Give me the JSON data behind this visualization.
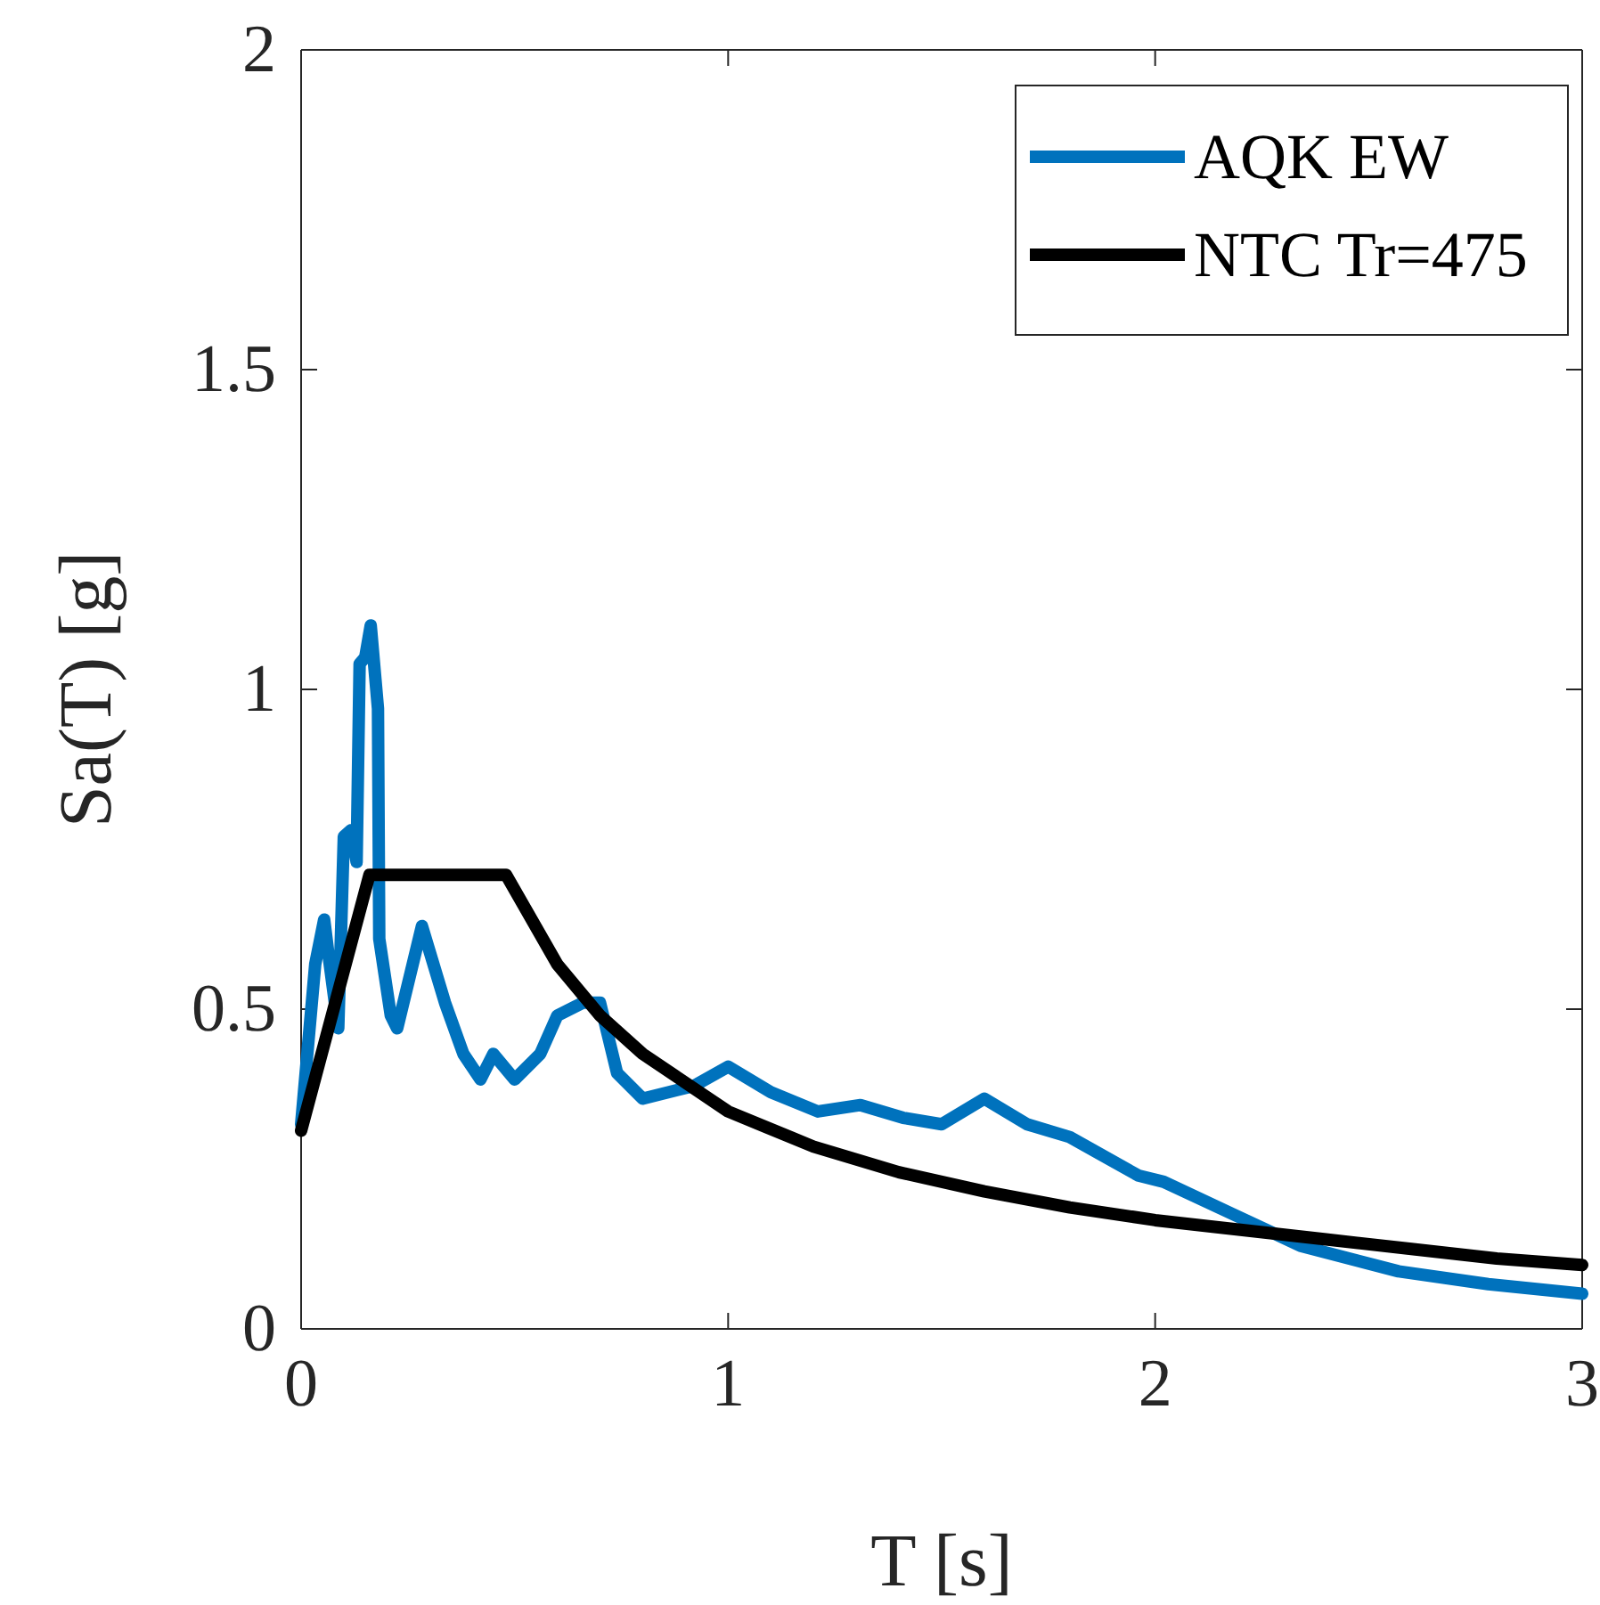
{
  "chart_data": {
    "type": "line",
    "xlabel": "T [s]",
    "ylabel": "Sa(T) [g]",
    "xlim": [
      0,
      3
    ],
    "ylim": [
      0,
      2
    ],
    "xticks": [
      0,
      1,
      2,
      3
    ],
    "yticks": [
      0,
      0.5,
      1,
      1.5,
      2
    ],
    "grid": false,
    "legend": "top right",
    "line_style": "solid",
    "marker": "none",
    "series": [
      {
        "name": "AQK EW",
        "color": "#0072bd",
        "x": [
          0,
          0.033,
          0.054,
          0.067,
          0.087,
          0.1,
          0.117,
          0.13,
          0.137,
          0.15,
          0.163,
          0.18,
          0.183,
          0.21,
          0.225,
          0.283,
          0.337,
          0.38,
          0.42,
          0.45,
          0.5,
          0.56,
          0.6,
          0.66,
          0.7,
          0.74,
          0.8,
          0.92,
          1.0,
          1.1,
          1.21,
          1.31,
          1.41,
          1.5,
          1.6,
          1.7,
          1.8,
          1.88,
          1.96,
          2.02,
          2.18,
          2.34,
          2.57,
          2.78,
          3.0
        ],
        "values": [
          0.32,
          0.57,
          0.64,
          0.57,
          0.47,
          0.77,
          0.78,
          0.73,
          1.04,
          1.05,
          1.1,
          0.97,
          0.61,
          0.49,
          0.47,
          0.63,
          0.51,
          0.43,
          0.39,
          0.43,
          0.39,
          0.43,
          0.49,
          0.51,
          0.51,
          0.4,
          0.36,
          0.38,
          0.41,
          0.37,
          0.34,
          0.35,
          0.33,
          0.32,
          0.36,
          0.32,
          0.3,
          0.27,
          0.24,
          0.23,
          0.18,
          0.13,
          0.09,
          0.07,
          0.055
        ]
      },
      {
        "name": "NTC Tr=475",
        "color": "#000000",
        "x": [
          0,
          0.16,
          0.48,
          0.6,
          0.7,
          0.8,
          1.0,
          1.2,
          1.4,
          1.6,
          1.8,
          2.0,
          2.2,
          2.4,
          2.6,
          2.8,
          3.0
        ],
        "values": [
          0.31,
          0.71,
          0.71,
          0.57,
          0.49,
          0.43,
          0.34,
          0.285,
          0.245,
          0.215,
          0.19,
          0.17,
          0.155,
          0.14,
          0.125,
          0.11,
          0.1
        ]
      }
    ]
  }
}
